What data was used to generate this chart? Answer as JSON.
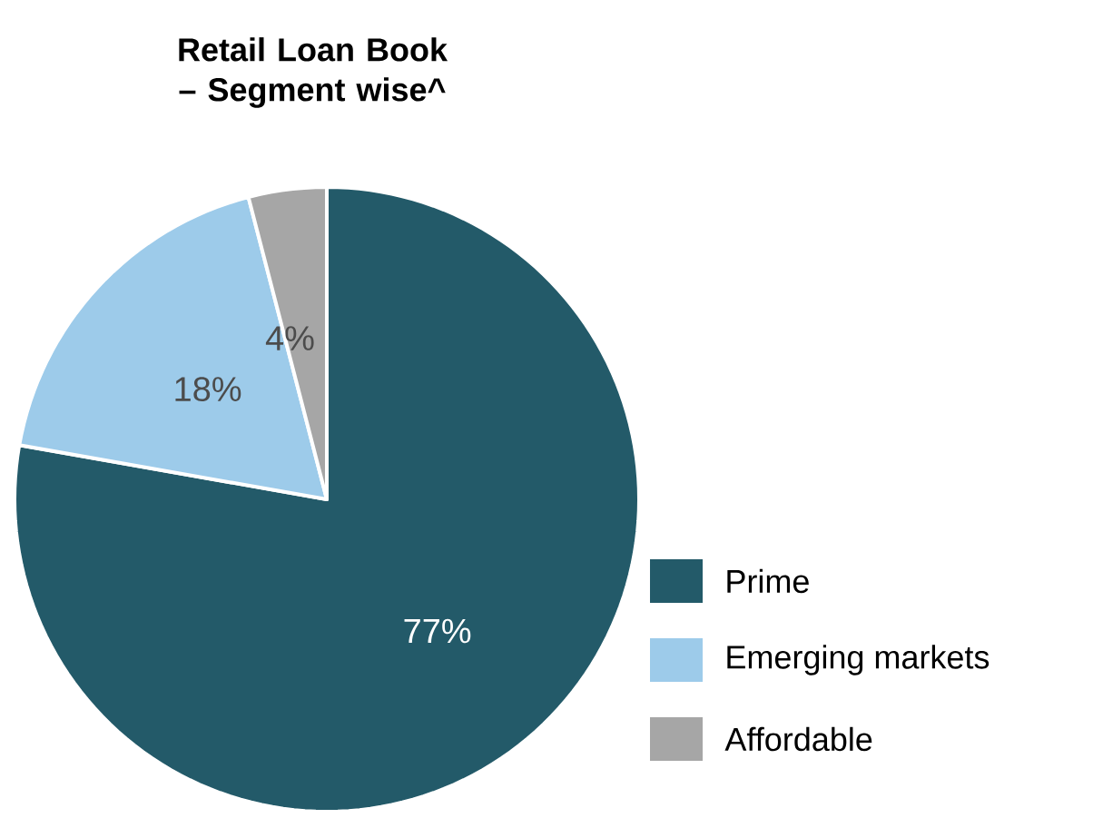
{
  "chart_data": {
    "type": "pie",
    "title": "Retail Loan Book – Segment wise^",
    "categories": [
      "Prime",
      "Emerging markets",
      "Affordable"
    ],
    "values": [
      77,
      18,
      4
    ],
    "colors": [
      "#235a69",
      "#9dcbea",
      "#a6a6a6"
    ],
    "data_labels": true,
    "value_labels": [
      "77%",
      "18%",
      "4%"
    ],
    "legend": "right"
  }
}
